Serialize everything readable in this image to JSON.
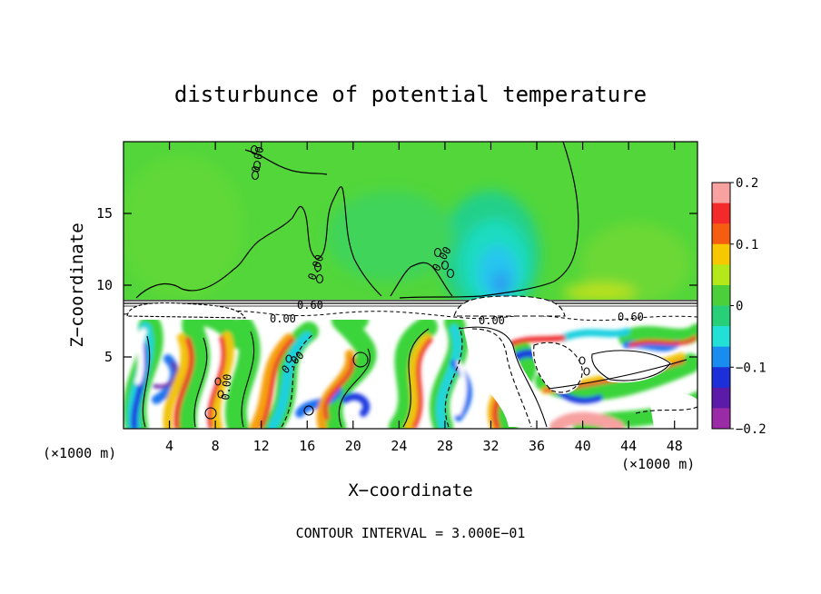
{
  "chart_data": {
    "type": "heatmap",
    "title": "disturbunce of potential temperature",
    "xlabel": "X−coordinate",
    "ylabel": "Z−coordinate",
    "x_unit_left": "(×1000 m)",
    "x_unit_right": "(×1000 m)",
    "xlim": [
      0,
      50
    ],
    "ylim": [
      0,
      20
    ],
    "xticks": [
      4,
      8,
      12,
      16,
      20,
      24,
      28,
      32,
      36,
      40,
      44,
      48
    ],
    "yticks": [
      5,
      10,
      15
    ],
    "colorbar": {
      "vmin": -0.2,
      "vmax": 0.2,
      "ticks": [
        0.2,
        0.1,
        0,
        -0.1,
        -0.2
      ],
      "tick_labels": [
        "0.2",
        "0.1",
        "0",
        "−0.1",
        "−0.2"
      ],
      "colors": [
        "#f7a1a1",
        "#f42a2a",
        "#f55e10",
        "#f7c800",
        "#b4e818",
        "#4cd03a",
        "#27cf78",
        "#22e0d6",
        "#1a8cf0",
        "#1c2fd9",
        "#5b1aa8",
        "#9b2aa6"
      ]
    },
    "contour_labels": [
      "0.60",
      "0.00",
      "0.00",
      "0.60",
      "0.00",
      "0.00",
      "0.00",
      "0.00",
      "0.00"
    ],
    "caption": "CONTOUR INTERVAL = 3.000E−01"
  }
}
